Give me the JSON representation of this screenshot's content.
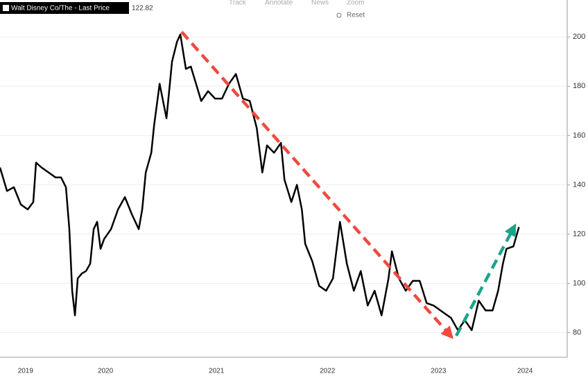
{
  "toolbar": [
    "Track",
    "Annotate",
    "News",
    "Zoom",
    "Reset"
  ],
  "chart_data": {
    "type": "line",
    "last_price": 122.82,
    "x": [
      2019.55,
      2019.613,
      2019.675,
      2019.738,
      2019.8,
      2019.85,
      2019.875,
      2019.925,
      2019.988,
      2020.05,
      2020.1,
      2020.144,
      2020.175,
      2020.2,
      2020.225,
      2020.25,
      2020.288,
      2020.325,
      2020.363,
      2020.394,
      2020.425,
      2020.456,
      2020.488,
      2020.55,
      2020.613,
      2020.675,
      2020.738,
      2020.8,
      2020.831,
      2020.863,
      2020.913,
      2020.938,
      2020.988,
      2021.05,
      2021.1,
      2021.144,
      2021.175,
      2021.225,
      2021.269,
      2021.363,
      2021.425,
      2021.488,
      2021.55,
      2021.613,
      2021.675,
      2021.738,
      2021.8,
      2021.863,
      2021.913,
      2021.956,
      2022.019,
      2022.081,
      2022.113,
      2022.175,
      2022.225,
      2022.269,
      2022.3,
      2022.363,
      2022.425,
      2022.488,
      2022.55,
      2022.613,
      2022.675,
      2022.738,
      2022.8,
      2022.863,
      2022.925,
      2022.988,
      2023.05,
      2023.081,
      2023.144,
      2023.206,
      2023.269,
      2023.331,
      2023.394,
      2023.456,
      2023.55,
      2023.613,
      2023.675,
      2023.738,
      2023.8,
      2023.863,
      2023.925,
      2023.988,
      2024.038,
      2024.081,
      2024.113,
      2024.175,
      2024.225
    ],
    "series": [
      {
        "name": "Walt Disney Co/The - Last Price",
        "color": "#000000",
        "values": [
          147,
          137.5,
          139,
          132,
          130,
          133,
          149,
          147,
          145,
          143,
          143,
          139,
          122,
          97,
          87,
          102,
          104,
          105,
          108,
          122,
          125,
          114,
          118,
          122,
          130,
          135,
          128,
          122,
          130,
          145,
          153,
          164,
          181,
          167,
          190,
          198,
          201,
          187,
          188,
          174,
          178,
          175,
          175,
          181,
          185,
          175,
          174,
          163,
          145,
          156,
          153,
          157,
          142,
          133,
          140,
          130,
          116,
          109,
          99,
          97,
          102,
          125,
          108,
          97,
          105,
          91,
          97,
          87,
          102,
          113,
          102,
          97,
          101,
          101,
          92,
          91,
          88,
          86,
          81,
          85,
          81,
          93,
          89,
          89,
          97,
          108,
          114,
          115,
          122.82
        ]
      }
    ],
    "xlim": [
      2019.55,
      2024.66
    ],
    "xticks": [
      {
        "value": 2019.78,
        "label": "2019"
      },
      {
        "value": 2020.5,
        "label": "2020"
      },
      {
        "value": 2021.5,
        "label": "2021"
      },
      {
        "value": 2022.5,
        "label": "2022"
      },
      {
        "value": 2023.5,
        "label": "2023"
      },
      {
        "value": 2024.28,
        "label": "2024"
      }
    ],
    "ylim": [
      70,
      215
    ],
    "yticks": [
      80,
      100,
      120,
      140,
      160,
      180,
      200
    ],
    "grid": true
  }
}
